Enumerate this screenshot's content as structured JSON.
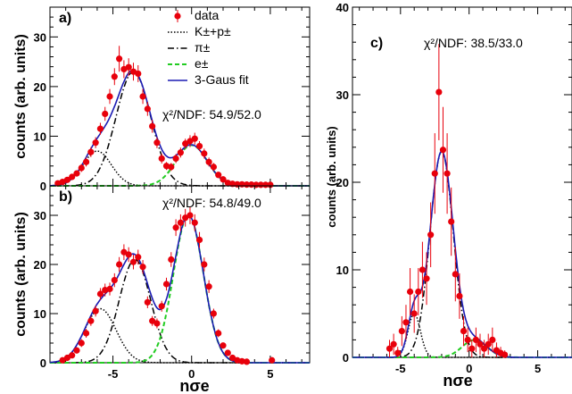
{
  "chart_data": [
    {
      "type": "scatter",
      "panel": "a",
      "panel_label": "a)",
      "xlabel": "nσe",
      "ylabel": "counts (arb. units)",
      "xlim": [
        -9,
        7.5
      ],
      "ylim": [
        0,
        36
      ],
      "xticks": [
        -5,
        0,
        5
      ],
      "yticks": [
        0,
        10,
        20,
        30
      ],
      "x_tick_labels": [
        "",
        "",
        ""
      ],
      "y_tick_labels": [
        "0",
        "10",
        "20",
        "30"
      ],
      "chi2_label": "χ²/NDF: 54.9/52.0",
      "legend": {
        "data": "data",
        "kp": "K±+p±",
        "pi": "π±",
        "e": "e±",
        "fit": "3-Gaus fit"
      },
      "components": [
        {
          "name": "K±+p±",
          "amp": 7,
          "mean": -6.0,
          "sigma": 0.9,
          "style": "dotted",
          "color": "#000000"
        },
        {
          "name": "π±",
          "amp": 23,
          "mean": -3.7,
          "sigma": 1.1,
          "style": "dashdot",
          "color": "#000000"
        },
        {
          "name": "e±",
          "amp": 8.2,
          "mean": 0.0,
          "sigma": 1.0,
          "style": "dashed",
          "color": "#22cc22"
        }
      ],
      "fit_color": "#1a1ab3",
      "points": {
        "x": [
          -8.5,
          -8.2,
          -7.9,
          -7.6,
          -7.3,
          -7.0,
          -6.7,
          -6.4,
          -6.1,
          -5.8,
          -5.5,
          -5.2,
          -4.9,
          -4.6,
          -4.3,
          -4.0,
          -3.7,
          -3.4,
          -3.1,
          -2.8,
          -2.5,
          -2.2,
          -1.9,
          -1.6,
          -1.3,
          -1.0,
          -0.7,
          -0.4,
          -0.1,
          0.2,
          0.5,
          0.8,
          1.1,
          1.4,
          1.7,
          2.0,
          2.3,
          2.6,
          2.9,
          3.2,
          3.5,
          3.8,
          4.1,
          4.4,
          4.7,
          5.0
        ],
        "y": [
          0.5,
          0.8,
          1.2,
          1.8,
          2.5,
          3.6,
          4.8,
          6.8,
          8.7,
          11.5,
          14.5,
          18.0,
          22.0,
          25.6,
          23.5,
          23.9,
          23.0,
          22.6,
          18.0,
          15.5,
          12.0,
          8.7,
          5.5,
          4.0,
          3.8,
          5.5,
          6.7,
          8.5,
          9.0,
          9.5,
          8.0,
          6.5,
          4.8,
          3.8,
          2.2,
          1.3,
          0.6,
          0.4,
          0.3,
          0.3,
          0.25,
          0.25,
          0.2,
          0.2,
          0.2,
          0.2
        ],
        "err": [
          0.3,
          0.3,
          0.5,
          0.5,
          0.6,
          0.8,
          0.9,
          1.0,
          1.1,
          1.2,
          1.4,
          1.5,
          1.7,
          2.6,
          1.8,
          1.8,
          1.8,
          1.7,
          1.5,
          1.4,
          1.3,
          1.1,
          1.0,
          0.8,
          0.8,
          0.9,
          1.0,
          1.0,
          1.2,
          1.2,
          1.0,
          1.0,
          0.9,
          0.8,
          0.6,
          0.5,
          0.3,
          0.3,
          0.2,
          0.2,
          0.2,
          0.2,
          0.2,
          0.2,
          0.2,
          0.2
        ]
      }
    },
    {
      "type": "scatter",
      "panel": "b",
      "panel_label": "b)",
      "xlabel": "nσe",
      "ylabel": "counts (arb. units)",
      "xlim": [
        -9,
        7.5
      ],
      "ylim": [
        0,
        36
      ],
      "xticks": [
        -5,
        0,
        5
      ],
      "yticks": [
        0,
        10,
        20,
        30
      ],
      "x_tick_labels": [
        "-5",
        "0",
        "5"
      ],
      "y_tick_labels": [
        "0",
        "10",
        "20",
        "30"
      ],
      "chi2_label": "χ²/NDF: 54.8/49.0",
      "components": [
        {
          "name": "K±+p±",
          "amp": 11,
          "mean": -5.8,
          "sigma": 1.0,
          "style": "dotted",
          "color": "#000000"
        },
        {
          "name": "π±",
          "amp": 21,
          "mean": -3.6,
          "sigma": 1.0,
          "style": "dashdot",
          "color": "#000000"
        },
        {
          "name": "e±",
          "amp": 30,
          "mean": -0.2,
          "sigma": 0.95,
          "style": "dashed",
          "color": "#22cc22"
        }
      ],
      "fit_color": "#1a1ab3",
      "points": {
        "x": [
          -8.2,
          -7.9,
          -7.6,
          -7.3,
          -7.0,
          -6.7,
          -6.4,
          -6.1,
          -5.8,
          -5.5,
          -5.2,
          -4.9,
          -4.6,
          -4.3,
          -4.0,
          -3.7,
          -3.4,
          -3.1,
          -2.8,
          -2.5,
          -2.2,
          -1.9,
          -1.6,
          -1.3,
          -1.0,
          -0.7,
          -0.4,
          -0.1,
          0.2,
          0.5,
          0.8,
          1.1,
          1.4,
          1.7,
          2.0,
          2.3,
          2.6,
          2.9,
          3.2,
          3.5,
          5.1
        ],
        "y": [
          0.5,
          1.0,
          1.5,
          2.5,
          4.0,
          6.0,
          8.5,
          10.5,
          14.0,
          14.8,
          15.0,
          16.8,
          20.0,
          22.5,
          22.0,
          20.5,
          21.5,
          19.5,
          12.3,
          8.5,
          8.0,
          11.5,
          16.0,
          21.0,
          27.5,
          28.5,
          29.5,
          30.0,
          28.5,
          25.0,
          20.0,
          15.5,
          10.0,
          6.0,
          3.5,
          2.0,
          1.0,
          0.5,
          0.3,
          0.2,
          0.5
        ],
        "err": [
          0.3,
          0.4,
          0.5,
          0.6,
          0.8,
          0.9,
          1.0,
          1.1,
          1.2,
          1.3,
          1.3,
          1.4,
          1.5,
          1.6,
          1.5,
          1.5,
          1.5,
          1.4,
          1.2,
          1.0,
          1.0,
          1.1,
          1.3,
          1.5,
          1.7,
          1.7,
          1.8,
          1.8,
          1.7,
          1.6,
          1.4,
          1.3,
          1.0,
          0.8,
          0.6,
          0.5,
          0.3,
          0.2,
          0.2,
          0.2,
          0.3
        ]
      }
    },
    {
      "type": "scatter",
      "panel": "c",
      "panel_label": "c)",
      "xlabel": "nσe",
      "ylabel": "counts (arb. units)",
      "xlim": [
        -8.5,
        7.5
      ],
      "ylim": [
        0,
        40
      ],
      "xticks": [
        -5,
        0,
        5
      ],
      "yticks": [
        0,
        10,
        20,
        30,
        40
      ],
      "x_tick_labels": [
        "-5",
        "0",
        "5"
      ],
      "y_tick_labels": [
        "0",
        "10",
        "20",
        "30",
        "40"
      ],
      "chi2_label": "χ²/NDF: 38.5/33.0",
      "components": [
        {
          "name": "K±+p±",
          "amp": 5,
          "mean": -4.0,
          "sigma": 0.45,
          "style": "dotted",
          "color": "#000000"
        },
        {
          "name": "π±",
          "amp": 23.5,
          "mean": -2.0,
          "sigma": 0.85,
          "style": "dashdot",
          "color": "#000000"
        },
        {
          "name": "e±",
          "amp": 2.0,
          "mean": 0.4,
          "sigma": 0.9,
          "style": "dashed",
          "color": "#22cc22"
        }
      ],
      "fit_color": "#1a1ab3",
      "points": {
        "x": [
          -5.8,
          -5.5,
          -5.2,
          -4.9,
          -4.6,
          -4.3,
          -4.0,
          -3.7,
          -3.4,
          -3.1,
          -2.8,
          -2.5,
          -2.2,
          -1.9,
          -1.6,
          -1.3,
          -1.0,
          -0.7,
          -0.4,
          -0.1,
          0.2,
          0.5,
          0.8,
          1.1,
          1.4,
          1.7,
          2.0,
          2.3,
          2.6
        ],
        "y": [
          1.0,
          1.5,
          0.5,
          3.0,
          4.0,
          7.5,
          5.0,
          7.5,
          10.0,
          9.0,
          14.0,
          21.0,
          30.3,
          23.7,
          21.0,
          15.5,
          9.5,
          7.0,
          3.0,
          2.0,
          1.0,
          2.0,
          1.5,
          1.0,
          1.5,
          2.0,
          0.8,
          0.5,
          0.3
        ],
        "err": [
          1.0,
          1.2,
          0.7,
          1.7,
          2.0,
          2.7,
          2.2,
          2.7,
          3.2,
          3.0,
          3.7,
          4.6,
          5.5,
          4.9,
          4.6,
          3.9,
          3.1,
          2.6,
          1.7,
          1.4,
          1.0,
          1.4,
          1.2,
          1.0,
          1.2,
          1.4,
          0.9,
          0.7,
          0.5
        ]
      }
    }
  ],
  "colors": {
    "marker": "#e8000b",
    "fit": "#1a1ab3",
    "electron": "#22cc22",
    "axis": "#000000"
  }
}
